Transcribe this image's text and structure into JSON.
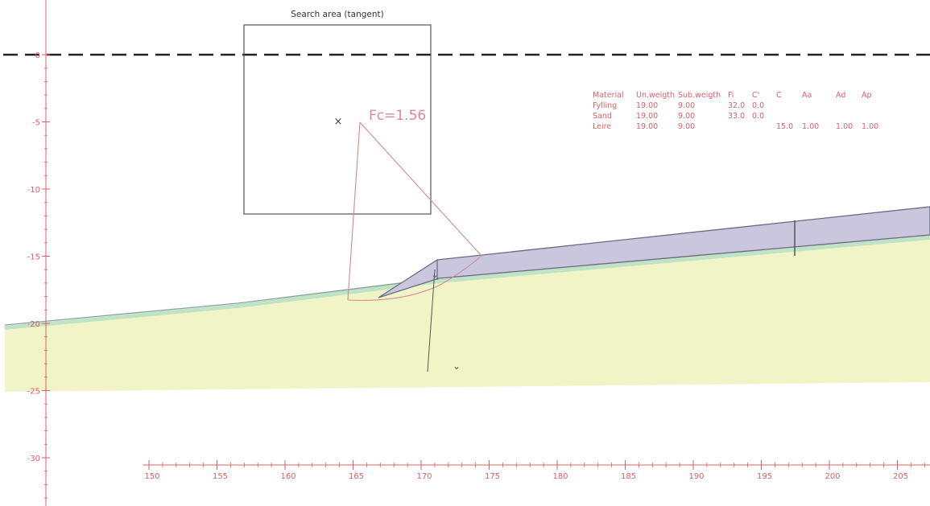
{
  "search_area": {
    "title": "Search area (tangent)"
  },
  "result": {
    "fc_label": "Fc=1.56"
  },
  "y_ticks": [
    "0",
    "-5",
    "-10",
    "-15",
    "-20",
    "-25",
    "-30"
  ],
  "x_ticks": [
    "150",
    "155",
    "160",
    "165",
    "170",
    "175",
    "180",
    "185",
    "190",
    "195",
    "200",
    "205"
  ],
  "material_table": {
    "headers": [
      "Material",
      "Un.weigth",
      "Sub.weigth",
      "Fi",
      "C'",
      "C",
      "Aa",
      "Ad",
      "Ap"
    ],
    "rows": [
      {
        "name": "Fylling",
        "unw": "19.00",
        "subw": "9.00",
        "fi": "32.0",
        "c1": "0.0",
        "c": "",
        "aa": "",
        "ad": "",
        "ap": ""
      },
      {
        "name": "Sand",
        "unw": "19.00",
        "subw": "9.00",
        "fi": "33.0",
        "c1": "0.0",
        "c": "",
        "aa": "",
        "ad": "",
        "ap": ""
      },
      {
        "name": "Leire",
        "unw": "19.00",
        "subw": "9.00",
        "fi": "",
        "c1": "",
        "c": "15.0",
        "aa": "1.00",
        "ad": "1.00",
        "ap": "1.00"
      }
    ]
  },
  "colors": {
    "axis": "#d9606a",
    "fill_layer": "#c9c6dd",
    "clay_layer": "#f1f4c6",
    "sand_band": "#bfe3c4",
    "slip": "#d08a95"
  }
}
